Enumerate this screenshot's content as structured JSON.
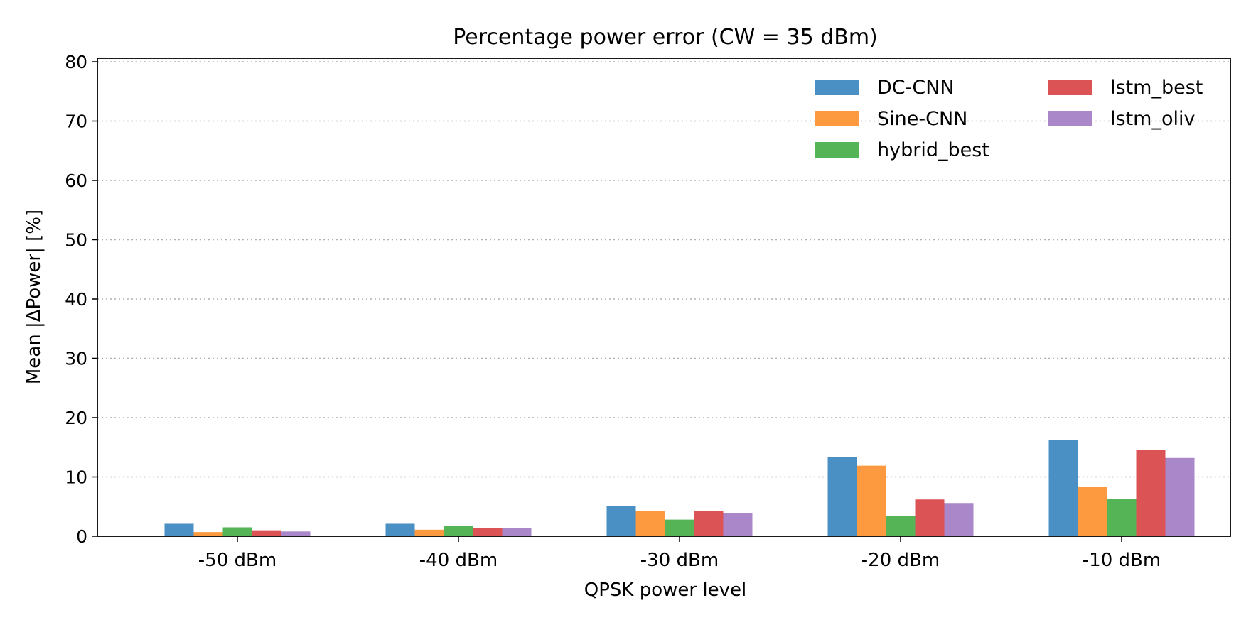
{
  "chart_data": {
    "type": "bar",
    "title": "Percentage power error  (CW = 35 dBm)",
    "xlabel": "QPSK power level",
    "ylabel": "Mean |ΔPower|  [%]",
    "ylim": [
      0,
      80
    ],
    "yticks": [
      0,
      10,
      20,
      30,
      40,
      50,
      60,
      70,
      80
    ],
    "grid": "y-dotted",
    "legend_position": "top-right",
    "legend_columns": 2,
    "categories": [
      "-50 dBm",
      "-40 dBm",
      "-30 dBm",
      "-20 dBm",
      "-10 dBm"
    ],
    "series": [
      {
        "name": "DC-CNN",
        "color": "#4a90c4",
        "values": [
          2.1,
          2.1,
          5.1,
          13.3,
          16.2
        ]
      },
      {
        "name": "Sine-CNN",
        "color": "#fd9a40",
        "values": [
          0.7,
          1.1,
          4.2,
          11.9,
          8.3
        ]
      },
      {
        "name": "hybrid_best",
        "color": "#55b455",
        "values": [
          1.5,
          1.8,
          2.8,
          3.4,
          6.3
        ]
      },
      {
        "name": "lstm_best",
        "color": "#dc5356",
        "values": [
          1.0,
          1.4,
          4.2,
          6.2,
          14.6
        ]
      },
      {
        "name": "lstm_oliv",
        "color": "#a987c9",
        "values": [
          0.8,
          1.4,
          3.9,
          5.6,
          13.2
        ]
      }
    ]
  }
}
